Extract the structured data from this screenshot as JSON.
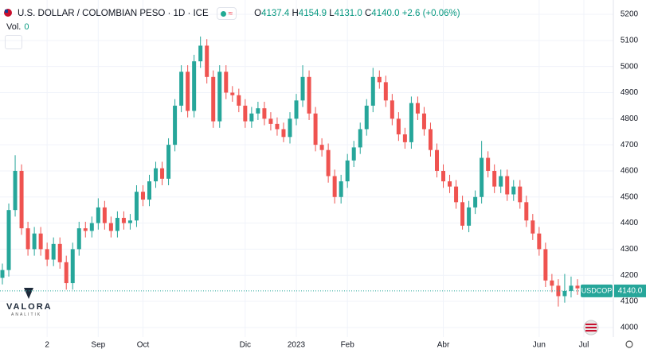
{
  "header": {
    "volume_label": "Vol.",
    "volume": 0,
    "ohlc_keys": [
      "O",
      "H",
      "L",
      "C"
    ],
    "ohlc_values": [
      "4137.4",
      "4154.9",
      "4131.0",
      "4140.0"
    ],
    "change": "+2.6 (+0.06%)"
  },
  "watermark": {
    "name": "VALORA",
    "tagline": "ANALITIK"
  },
  "chart_data": {
    "type": "candlestick",
    "title": "U.S. DOLLAR / COLOMBIAN PESO · 1D · ICE",
    "categories": [
      null,
      null,
      null,
      null,
      null,
      null,
      null,
      "2",
      null,
      null,
      null,
      null,
      null,
      null,
      null,
      "Sep",
      null,
      null,
      null,
      null,
      null,
      null,
      "Oct",
      null,
      null,
      null,
      null,
      null,
      null,
      null,
      null,
      null,
      null,
      null,
      null,
      null,
      null,
      null,
      "Dic",
      null,
      null,
      null,
      null,
      null,
      null,
      null,
      "2023",
      null,
      null,
      null,
      null,
      null,
      null,
      null,
      "Feb",
      null,
      null,
      null,
      null,
      null,
      null,
      null,
      null,
      null,
      null,
      null,
      null,
      null,
      null,
      "Abr",
      null,
      null,
      null,
      null,
      null,
      null,
      null,
      null,
      null,
      null,
      null,
      null,
      null,
      null,
      "Jun",
      null,
      null,
      null,
      null,
      null,
      null,
      "Jul"
    ],
    "series": [
      {
        "name": "USDCOP",
        "up_color": "#26a69a",
        "down_color": "#ef5350",
        "last_label": "4140.0",
        "open": [
          4190,
          4220,
          4450,
          4600,
          4380,
          4300,
          4360,
          4300,
          4260,
          4320,
          4250,
          4170,
          4300,
          4380,
          4370,
          4400,
          4460,
          4400,
          4370,
          4420,
          4400,
          4410,
          4520,
          4490,
          4560,
          4610,
          4570,
          4700,
          4850,
          4980,
          4830,
          5020,
          5080,
          4960,
          4790,
          4980,
          4900,
          4890,
          4850,
          4790,
          4820,
          4840,
          4800,
          4780,
          4760,
          4730,
          4800,
          4870,
          4960,
          4820,
          4700,
          4680,
          4580,
          4500,
          4560,
          4640,
          4690,
          4760,
          4850,
          4960,
          4940,
          4870,
          4800,
          4740,
          4710,
          4860,
          4820,
          4760,
          4680,
          4600,
          4560,
          4540,
          4480,
          4390,
          4460,
          4500,
          4650,
          4600,
          4540,
          4580,
          4510,
          4540,
          4480,
          4410,
          4360,
          4300,
          4180,
          4160,
          4120,
          4140,
          4160,
          4137.4
        ],
        "high": [
          4245,
          4475,
          4660,
          4625,
          4405,
          4385,
          4385,
          4325,
          4345,
          4345,
          4275,
          4325,
          4405,
          4405,
          4425,
          4495,
          4485,
          4425,
          4445,
          4445,
          4435,
          4545,
          4545,
          4585,
          4635,
          4635,
          4725,
          4875,
          5005,
          5005,
          5045,
          5115,
          5105,
          4985,
          5005,
          5005,
          4925,
          4915,
          4875,
          4845,
          4865,
          4865,
          4825,
          4805,
          4785,
          4825,
          4895,
          5005,
          4985,
          4845,
          4725,
          4705,
          4605,
          4585,
          4665,
          4715,
          4785,
          4875,
          4995,
          4985,
          4965,
          4895,
          4825,
          4765,
          4885,
          4885,
          4845,
          4785,
          4705,
          4625,
          4585,
          4565,
          4505,
          4485,
          4525,
          4715,
          4675,
          4625,
          4605,
          4605,
          4565,
          4565,
          4505,
          4435,
          4385,
          4325,
          4205,
          4185,
          4205,
          4195,
          4185,
          4154.9
        ],
        "low": [
          4165,
          4195,
          4425,
          4355,
          4275,
          4275,
          4275,
          4235,
          4235,
          4225,
          4145,
          4145,
          4275,
          4345,
          4345,
          4375,
          4375,
          4345,
          4345,
          4375,
          4375,
          4385,
          4465,
          4465,
          4535,
          4545,
          4545,
          4675,
          4825,
          4805,
          4805,
          4995,
          4935,
          4765,
          4765,
          4875,
          4865,
          4825,
          4765,
          4765,
          4795,
          4775,
          4755,
          4735,
          4710,
          4705,
          4775,
          4845,
          4795,
          4675,
          4655,
          4555,
          4475,
          4475,
          4535,
          4615,
          4665,
          4735,
          4825,
          4915,
          4845,
          4775,
          4715,
          4685,
          4685,
          4795,
          4735,
          4655,
          4575,
          4535,
          4515,
          4455,
          4375,
          4365,
          4435,
          4475,
          4575,
          4515,
          4515,
          4485,
          4485,
          4455,
          4385,
          4335,
          4275,
          4155,
          4135,
          4080,
          4095,
          4115,
          4125,
          4131.0
        ],
        "close": [
          4220,
          4450,
          4600,
          4380,
          4300,
          4360,
          4300,
          4260,
          4320,
          4250,
          4170,
          4300,
          4380,
          4370,
          4400,
          4460,
          4400,
          4370,
          4420,
          4400,
          4410,
          4520,
          4490,
          4560,
          4610,
          4570,
          4700,
          4850,
          4980,
          4830,
          5020,
          5080,
          4960,
          4790,
          4980,
          4900,
          4890,
          4850,
          4790,
          4820,
          4840,
          4800,
          4780,
          4760,
          4730,
          4800,
          4870,
          4960,
          4820,
          4700,
          4680,
          4580,
          4500,
          4560,
          4640,
          4690,
          4760,
          4850,
          4960,
          4940,
          4870,
          4800,
          4740,
          4710,
          4860,
          4820,
          4760,
          4680,
          4600,
          4560,
          4540,
          4480,
          4390,
          4460,
          4500,
          4650,
          4600,
          4540,
          4580,
          4510,
          4540,
          4480,
          4410,
          4360,
          4300,
          4180,
          4160,
          4120,
          4140,
          4160,
          4150,
          4140.0
        ]
      }
    ],
    "ylim": [
      3963,
      5255
    ],
    "yticks": [
      4000,
      4100,
      4200,
      4300,
      4400,
      4500,
      4600,
      4700,
      4800,
      4900,
      5000,
      5100,
      5200
    ],
    "grid": true
  }
}
